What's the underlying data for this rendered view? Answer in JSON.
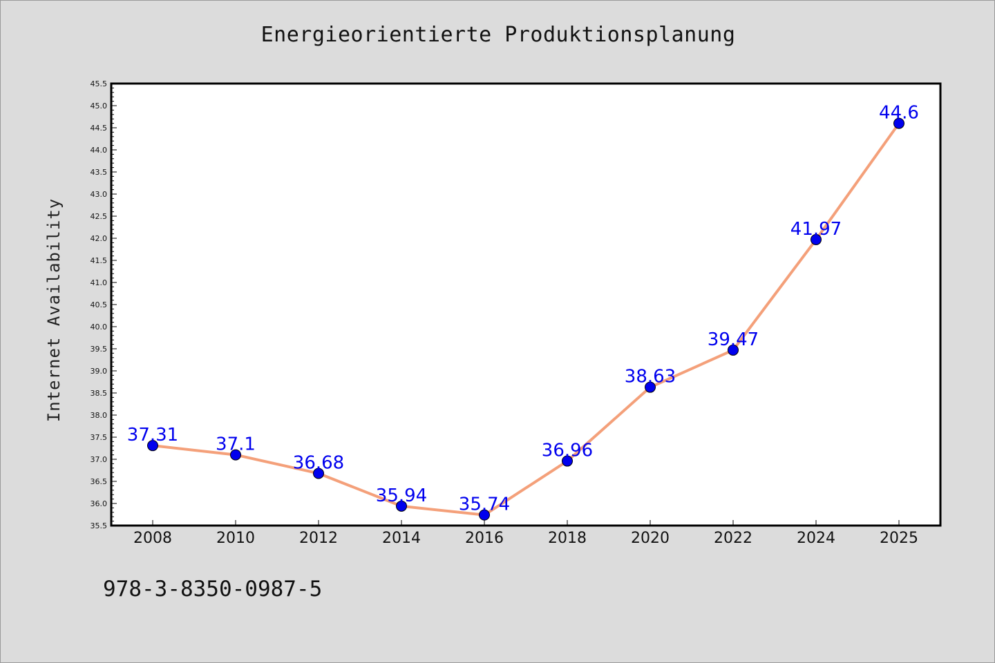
{
  "chart_data": {
    "type": "line",
    "title": "Energieorientierte Produktionsplanung",
    "xlabel": "",
    "ylabel": "Internet Availability",
    "categories": [
      "2008",
      "2010",
      "2012",
      "2014",
      "2016",
      "2018",
      "2020",
      "2022",
      "2024",
      "2025"
    ],
    "series": [
      {
        "values": [
          37.31,
          37.1,
          36.68,
          35.94,
          35.74,
          36.96,
          38.63,
          39.47,
          41.97,
          44.6
        ],
        "labels": [
          "37.31",
          "37.1",
          "36.68",
          "35.94",
          "35.74",
          "36.96",
          "38.63",
          "39.47",
          "41.97",
          "44.6"
        ]
      }
    ],
    "ylim": [
      35.5,
      45.5
    ],
    "ytick_labels": [
      "35.5",
      "36.0",
      "36.5",
      "37.0",
      "37.5",
      "38.0",
      "38.5",
      "39.0",
      "39.5",
      "40.0",
      "40.5",
      "41.0",
      "41.5",
      "42.0",
      "42.5",
      "43.0",
      "43.5",
      "44.0",
      "44.5",
      "45.0",
      "45.5"
    ],
    "ytick_values": [
      35.5,
      36.0,
      36.5,
      37.0,
      37.5,
      38.0,
      38.5,
      39.0,
      39.5,
      40.0,
      40.5,
      41.0,
      41.5,
      42.0,
      42.5,
      43.0,
      43.5,
      44.0,
      44.5,
      45.0,
      45.5
    ],
    "grid": false,
    "legend": "none",
    "colors": {
      "line": "#f4a07a",
      "marker": "#0000ee",
      "data_label": "#0000ee",
      "plot_background": "#ffffff",
      "page_background": "#dcdcdc"
    }
  },
  "footer": {
    "isbn": "978-3-8350-0987-5"
  }
}
